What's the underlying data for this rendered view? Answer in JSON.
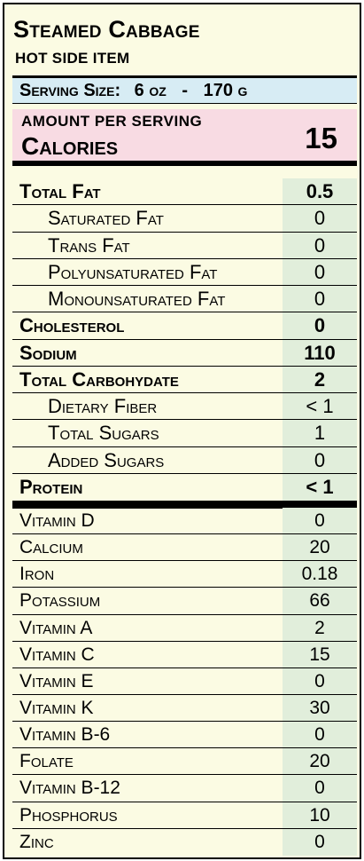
{
  "header": {
    "title": "Steamed Cabbage",
    "subtitle": "HOT SIDE ITEM"
  },
  "serving": {
    "label": "Serving Size:",
    "amount": "6 oz",
    "dash": "-",
    "grams": "170 g"
  },
  "calories": {
    "amount_per_serving": "AMOUNT PER SERVING",
    "label": "Calories",
    "value": "15"
  },
  "nutrients": [
    {
      "name": "Total Fat",
      "value": "0.5"
    },
    {
      "name": "Saturated Fat",
      "value": "0"
    },
    {
      "name": "Trans Fat",
      "value": "0"
    },
    {
      "name": "Polyunsaturated Fat",
      "value": "0"
    },
    {
      "name": "Monounsaturated Fat",
      "value": "0"
    },
    {
      "name": "Cholesterol",
      "value": "0"
    },
    {
      "name": "Sodium",
      "value": "110"
    },
    {
      "name": "Total Carbohydate",
      "value": "2"
    },
    {
      "name": "Dietary Fiber",
      "value": "< 1"
    },
    {
      "name": "Total Sugars",
      "value": "1"
    },
    {
      "name": "Added Sugars",
      "value": "0"
    },
    {
      "name": "Protein",
      "value": "< 1"
    }
  ],
  "vitamins": [
    {
      "name": "Vitamin D",
      "value": "0"
    },
    {
      "name": "Calcium",
      "value": "20"
    },
    {
      "name": "Iron",
      "value": "0.18"
    },
    {
      "name": "Potassium",
      "value": "66"
    },
    {
      "name": "Vitamin A",
      "value": "2"
    },
    {
      "name": "Vitamin C",
      "value": "15"
    },
    {
      "name": "Vitamin E",
      "value": "0"
    },
    {
      "name": "Vitamin K",
      "value": "30"
    },
    {
      "name": "Vitamin B-6",
      "value": "0"
    },
    {
      "name": "Folate",
      "value": "20"
    },
    {
      "name": "Vitamin B-12",
      "value": "0"
    },
    {
      "name": "Phosphorus",
      "value": "10"
    },
    {
      "name": "Zinc",
      "value": "0"
    }
  ],
  "colors": {
    "panel": "#fbfbe3",
    "serving_band": "#d7ecf4",
    "calories_band": "#f8dbe3",
    "value_column": "#e1eedb"
  }
}
